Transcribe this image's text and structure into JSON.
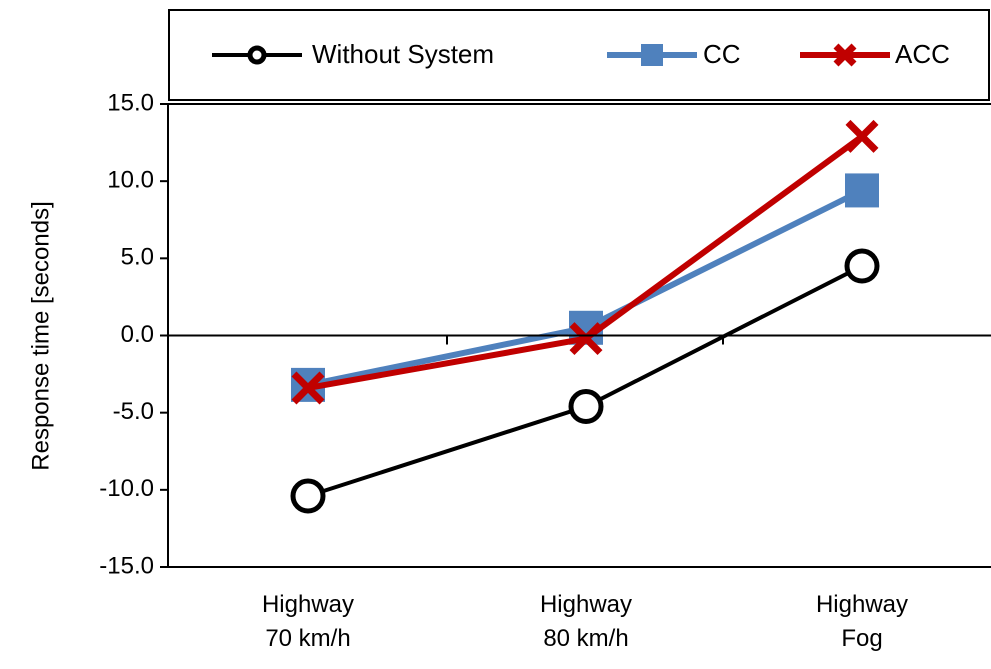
{
  "chart_data": {
    "type": "line",
    "categories": [
      [
        "Highway",
        "70 km/h"
      ],
      [
        "Highway",
        "80 km/h"
      ],
      [
        "Highway",
        "Fog"
      ]
    ],
    "ylabel": "Response time [seconds]",
    "ylim": [
      -15,
      15
    ],
    "yticks": [
      15,
      10,
      5,
      0,
      -5,
      -10,
      -15
    ],
    "ytick_labels": [
      "15.0",
      "10.0",
      "5.0",
      "0.0",
      "-5.0",
      "-10.0",
      "-15.0"
    ],
    "grid": false,
    "legend_position": "top",
    "series": [
      {
        "name": "Without System",
        "values": [
          -10.4,
          -4.6,
          4.5
        ],
        "color": "#000000",
        "marker": "circle"
      },
      {
        "name": "CC",
        "values": [
          -3.2,
          0.5,
          9.4
        ],
        "color": "#4F81BD",
        "marker": "square"
      },
      {
        "name": "ACC",
        "values": [
          -3.4,
          -0.2,
          12.9
        ],
        "color": "#C00000",
        "marker": "x"
      }
    ]
  }
}
